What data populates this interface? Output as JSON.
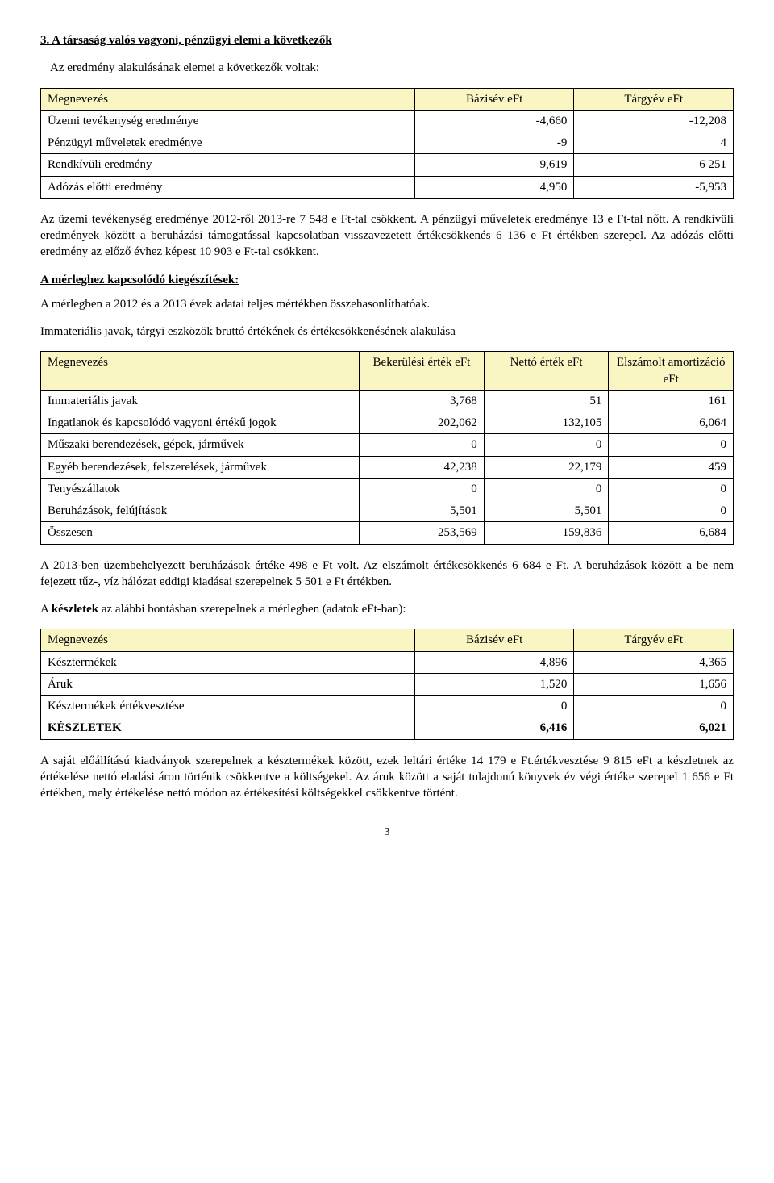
{
  "section_heading": "3.  A társaság valós vagyoni, pénzügyi elemi a következők",
  "intro_line": "Az eredmény alakulásának elemei a következők voltak:",
  "table1": {
    "headers": [
      "Megnevezés",
      "Bázisév eFt",
      "Tárgyév eFt"
    ],
    "header_bg": "#faf6c4",
    "col_widths": [
      "54%",
      "23%",
      "23%"
    ],
    "rows": [
      [
        "Üzemi tevékenység eredménye",
        "-4,660",
        "-12,208"
      ],
      [
        "Pénzügyi műveletek eredménye",
        "-9",
        "4"
      ],
      [
        "Rendkívüli eredmény",
        "9,619",
        "6 251"
      ],
      [
        "Adózás előtti eredmény",
        "4,950",
        "-5,953"
      ]
    ]
  },
  "para1": "Az üzemi tevékenység eredménye 2012-ről 2013-re 7 548 e Ft-tal csökkent. A pénzügyi műveletek eredménye 13 e Ft-tal nőtt.   A rendkívüli eredmények között a beruházási támogatással kapcsolatban visszavezetett értékcsökkenés 6 136 e Ft értékben szerepel. Az adózás előtti eredmény az előző évhez képest 10 903 e Ft-tal csökkent.",
  "subhead1": "A mérleghez kapcsolódó kiegészítések:",
  "para2": "A mérlegben a 2012 és a 2013 évek adatai teljes mértékben összehasonlíthatóak.",
  "para3": "Immateriális javak, tárgyi eszközök bruttó értékének és értékcsökkenésének alakulása",
  "table2": {
    "headers": [
      "Megnevezés",
      "Bekerülési érték eFt",
      "Nettó érték eFt",
      "Elszámolt amortizáció eFt"
    ],
    "header_bg": "#faf6c4",
    "col_widths": [
      "46%",
      "18%",
      "18%",
      "18%"
    ],
    "rows": [
      [
        "Immateriális javak",
        "3,768",
        "51",
        "161"
      ],
      [
        "Ingatlanok és kapcsolódó vagyoni értékű jogok",
        "202,062",
        "132,105",
        "6,064"
      ],
      [
        "Műszaki berendezések, gépek, járművek",
        "0",
        "0",
        "0"
      ],
      [
        "Egyéb berendezések, felszerelések, járművek",
        "42,238",
        "22,179",
        "459"
      ],
      [
        "Tenyészállatok",
        "0",
        "0",
        "0"
      ],
      [
        "Beruházások, felújítások",
        "5,501",
        "5,501",
        "0"
      ],
      [
        "Összesen",
        "253,569",
        "159,836",
        "6,684"
      ]
    ]
  },
  "para4": "A 2013-ben üzembehelyezett beruházások értéke 498 e Ft volt. Az elszámolt értékcsökkenés 6 684 e Ft.  A beruházások között a be nem fejezett tűz-, víz hálózat eddigi kiadásai szerepelnek 5 501 e Ft értékben.",
  "para5_prefix": "A ",
  "para5_bold": "készletek",
  "para5_rest": " az alábbi bontásban szerepelnek a mérlegben (adatok eFt-ban):",
  "table3": {
    "headers": [
      "Megnevezés",
      "Bázisév eFt",
      "Tárgyév eFt"
    ],
    "header_bg": "#faf6c4",
    "col_widths": [
      "54%",
      "23%",
      "23%"
    ],
    "rows": [
      [
        "Késztermékek",
        "4,896",
        "4,365"
      ],
      [
        "Áruk",
        "1,520",
        "1,656"
      ],
      [
        "Késztermékek értékvesztése",
        "0",
        "0"
      ]
    ],
    "bold_row": [
      "KÉSZLETEK",
      "6,416",
      "6,021"
    ]
  },
  "para6": "A saját előállítású kiadványok szerepelnek a késztermékek között, ezek leltári értéke 14 179 e Ft.értékvesztése 9 815 eFt  a készletnek az értékelése nettó eladási áron történik csökkentve a költségekel.  Az áruk között a saját tulajdonú könyvek év végi értéke szerepel 1 656 e Ft értékben, mely értékelése nettó módon az értékesítési költségekkel csökkentve történt.",
  "page_number": "3"
}
